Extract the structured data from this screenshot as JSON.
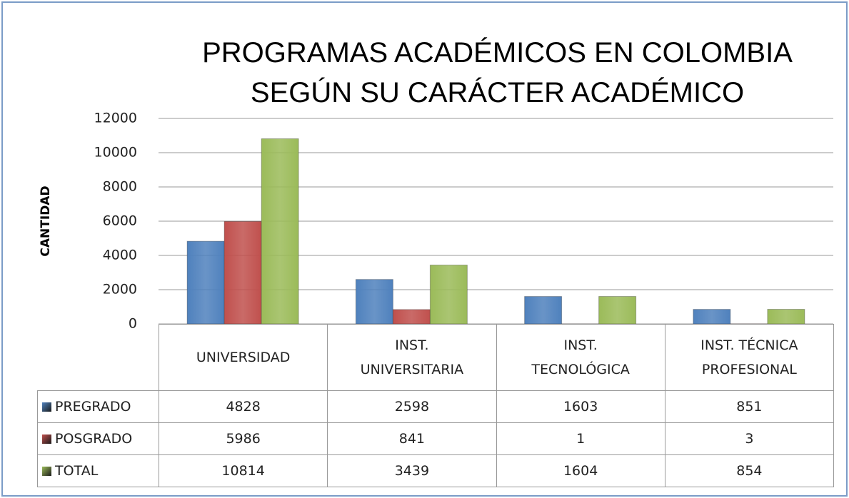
{
  "chart_data": {
    "type": "bar",
    "title": "PROGRAMAS ACADÉMICOS EN COLOMBIA\nSEGÚN SU CARÁCTER ACADÉMICO",
    "y_label": "CANTIDAD",
    "categories": [
      "UNIVERSIDAD",
      "INST. UNIVERSITARIA",
      "INST. TECNOLÓGICA",
      "INST. TÉCNICA PROFESIONAL"
    ],
    "series": [
      {
        "name": "PREGRADO",
        "color": "#4f81bd",
        "values": [
          4828,
          2598,
          1603,
          851
        ]
      },
      {
        "name": "POSGRADO",
        "color": "#c0504d",
        "values": [
          5986,
          841,
          1,
          3
        ]
      },
      {
        "name": "TOTAL",
        "color": "#9bbb59",
        "values": [
          10814,
          3439,
          1604,
          854
        ]
      }
    ],
    "ylim": [
      0,
      12000
    ],
    "yticks": [
      0,
      2000,
      4000,
      6000,
      8000,
      10000,
      12000
    ],
    "grid": true
  }
}
